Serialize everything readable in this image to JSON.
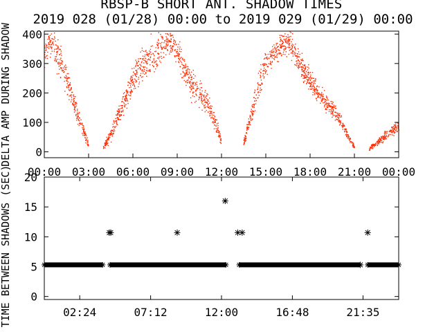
{
  "title": "RBSP-B SHORT ANT. SHADOW TIMES",
  "subtitle": "2019 028 (01/28) 00:00 to 2019 029 (01/29) 00:00",
  "colors": {
    "points_top": "#ff2a00",
    "points_bottom": "#000000",
    "axes": "#000000",
    "background": "#ffffff"
  },
  "chart_data": [
    {
      "type": "scatter",
      "ylabel": "DELTA AMP DURING SHADOW",
      "xlim": [
        "00:00",
        "24:00"
      ],
      "ylim": [
        -20,
        410
      ],
      "xticks": [
        "00:00",
        "03:00",
        "06:00",
        "09:00",
        "12:00",
        "15:00",
        "18:00",
        "21:00",
        "00:00"
      ],
      "yticks": [
        "0",
        "100",
        "200",
        "300",
        "400"
      ],
      "marker": "dot",
      "envelope_samples": {
        "hours": [
          0.0,
          0.25,
          0.5,
          1.0,
          1.5,
          2.0,
          2.5,
          3.0,
          3.5,
          4.0,
          4.5,
          5.0,
          5.5,
          6.0,
          6.5,
          7.0,
          7.5,
          8.0,
          8.5,
          9.0,
          9.5,
          10.0,
          10.5,
          11.0,
          11.5,
          12.0,
          12.5,
          13.0,
          13.5,
          14.0,
          14.5,
          15.0,
          15.5,
          16.0,
          16.5,
          17.0,
          17.5,
          18.0,
          18.5,
          19.0,
          19.5,
          20.0,
          20.5,
          21.0,
          21.5,
          22.0,
          22.5,
          23.0,
          23.5,
          24.0
        ],
        "amp_median": [
          330,
          360,
          380,
          320,
          250,
          170,
          90,
          20,
          null,
          15,
          60,
          120,
          180,
          240,
          290,
          310,
          330,
          360,
          380,
          340,
          270,
          220,
          200,
          170,
          110,
          40,
          null,
          null,
          30,
          120,
          220,
          300,
          330,
          360,
          380,
          330,
          280,
          240,
          200,
          170,
          150,
          110,
          60,
          15,
          null,
          10,
          30,
          50,
          70,
          90
        ],
        "amp_spread": [
          60,
          60,
          70,
          90,
          70,
          50,
          40,
          20,
          null,
          15,
          30,
          50,
          60,
          70,
          80,
          90,
          90,
          80,
          60,
          70,
          80,
          70,
          60,
          50,
          40,
          20,
          null,
          null,
          20,
          40,
          60,
          60,
          50,
          60,
          70,
          60,
          60,
          60,
          50,
          40,
          40,
          30,
          20,
          10,
          null,
          10,
          15,
          20,
          25,
          30
        ]
      }
    },
    {
      "type": "scatter",
      "ylabel": "TIME BETWEEN SHADOWS (SEC)",
      "xlim": [
        "00:00",
        "24:00"
      ],
      "ylim": [
        -0.5,
        20
      ],
      "xticks": [
        "02:24",
        "07:12",
        "12:00",
        "16:48",
        "21:35"
      ],
      "yticks": [
        "0",
        "5",
        "10",
        "15",
        "20"
      ],
      "marker": "asterisk",
      "series": [
        {
          "baseline_value": 5.3,
          "baseline_segments_hours": [
            [
              0.0,
              3.95
            ],
            [
              4.45,
              12.3
            ],
            [
              13.2,
              21.4
            ],
            [
              21.9,
              24.0
            ]
          ],
          "points": [
            {
              "x_hours": 4.4,
              "y": 10.7
            },
            {
              "x_hours": 4.5,
              "y": 10.7
            },
            {
              "x_hours": 9.0,
              "y": 10.7
            },
            {
              "x_hours": 12.25,
              "y": 16.0
            },
            {
              "x_hours": 13.1,
              "y": 10.7
            },
            {
              "x_hours": 13.4,
              "y": 10.7
            },
            {
              "x_hours": 21.4,
              "y": 5.3
            },
            {
              "x_hours": 21.9,
              "y": 10.7
            }
          ]
        }
      ]
    }
  ]
}
